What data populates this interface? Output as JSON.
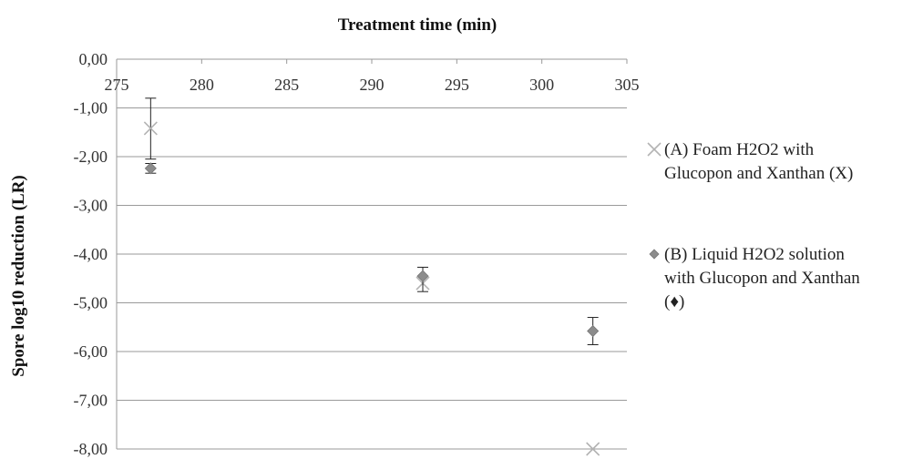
{
  "chart_data": {
    "type": "scatter",
    "title": "",
    "xlabel": "Treatment time (min)",
    "ylabel": "Spore log10 reduction (LR)",
    "xlim": [
      275,
      305
    ],
    "ylim": [
      -8,
      0
    ],
    "x_ticks": [
      "275",
      "280",
      "285",
      "290",
      "295",
      "300",
      "305"
    ],
    "y_ticks": [
      "0,00",
      "-1,00",
      "-2,00",
      "-3,00",
      "-4,00",
      "-5,00",
      "-6,00",
      "-7,00",
      "-8,00"
    ],
    "x_axis_position": "top",
    "grid": "horizontal",
    "legend_position": "right",
    "series": [
      {
        "name": "(A) Foam H2O2 with Glucopon and Xanthan (X)",
        "legend_lines": [
          "(A) Foam H2O2 with",
          "Glucopon and Xanthan (X)"
        ],
        "marker": "x",
        "color": "#b3b3b3",
        "points": [
          {
            "x": 277,
            "y": -1.42,
            "err_low": 0.63,
            "err_high": 0.62
          },
          {
            "x": 293,
            "y": -4.6
          },
          {
            "x": 303,
            "y": -8.0
          }
        ]
      },
      {
        "name": "(B) Liquid H2O2 solution with Glucopon and Xanthan (♦)",
        "legend_lines": [
          "(B) Liquid H2O2 solution",
          "with Glucopon and Xanthan",
          "(♦)"
        ],
        "marker": "diamond",
        "color": "#8c8c8c",
        "points": [
          {
            "x": 277,
            "y": -2.24,
            "err_low": 0.1,
            "err_high": 0.1
          },
          {
            "x": 293,
            "y": -4.45,
            "err_low": 0.32,
            "err_high": 0.18
          },
          {
            "x": 303,
            "y": -5.58,
            "err_low": 0.28,
            "err_high": 0.28
          }
        ]
      }
    ]
  }
}
